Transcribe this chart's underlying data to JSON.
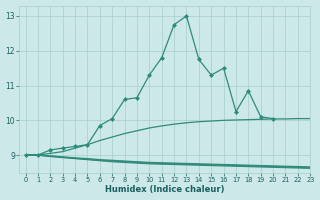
{
  "x": [
    0,
    1,
    2,
    3,
    4,
    5,
    6,
    7,
    8,
    9,
    10,
    11,
    12,
    13,
    14,
    15,
    16,
    17,
    18,
    19,
    20,
    21,
    22,
    23
  ],
  "line_main": [
    9.0,
    9.0,
    9.15,
    9.2,
    9.25,
    9.3,
    9.85,
    10.05,
    10.6,
    10.65,
    11.3,
    11.8,
    12.75,
    13.0,
    11.75,
    11.3,
    11.5,
    10.25,
    10.85,
    10.1,
    10.05,
    null,
    null,
    null
  ],
  "line_rise": [
    9.0,
    9.0,
    9.05,
    9.1,
    9.2,
    9.3,
    9.42,
    9.52,
    9.62,
    9.7,
    9.78,
    9.84,
    9.89,
    9.93,
    9.96,
    9.98,
    10.0,
    10.01,
    10.02,
    10.03,
    10.04,
    10.04,
    10.05,
    10.05
  ],
  "line_flat1": [
    9.0,
    9.0,
    8.98,
    8.95,
    8.92,
    8.9,
    8.87,
    8.85,
    8.83,
    8.81,
    8.79,
    8.78,
    8.77,
    8.76,
    8.75,
    8.74,
    8.73,
    8.72,
    8.71,
    8.7,
    8.69,
    8.68,
    8.67,
    8.66
  ],
  "line_flat2": [
    9.0,
    9.0,
    8.97,
    8.94,
    8.91,
    8.88,
    8.85,
    8.83,
    8.81,
    8.79,
    8.77,
    8.76,
    8.75,
    8.74,
    8.73,
    8.72,
    8.71,
    8.7,
    8.69,
    8.68,
    8.67,
    8.66,
    8.65,
    8.64
  ],
  "line_flat3": [
    9.0,
    9.0,
    8.96,
    8.93,
    8.9,
    8.87,
    8.84,
    8.81,
    8.79,
    8.77,
    8.75,
    8.74,
    8.73,
    8.72,
    8.71,
    8.7,
    8.69,
    8.68,
    8.67,
    8.66,
    8.65,
    8.64,
    8.63,
    8.62
  ],
  "color": "#2e8b7a",
  "bg_color": "#cde8e8",
  "grid_color": "#a8cccc",
  "xlabel": "Humidex (Indice chaleur)",
  "ylim": [
    8.5,
    13.3
  ],
  "xlim": [
    -0.5,
    23
  ],
  "yticks": [
    9,
    10,
    11,
    12,
    13
  ],
  "xticks": [
    0,
    1,
    2,
    3,
    4,
    5,
    6,
    7,
    8,
    9,
    10,
    11,
    12,
    13,
    14,
    15,
    16,
    17,
    18,
    19,
    20,
    21,
    22,
    23
  ]
}
